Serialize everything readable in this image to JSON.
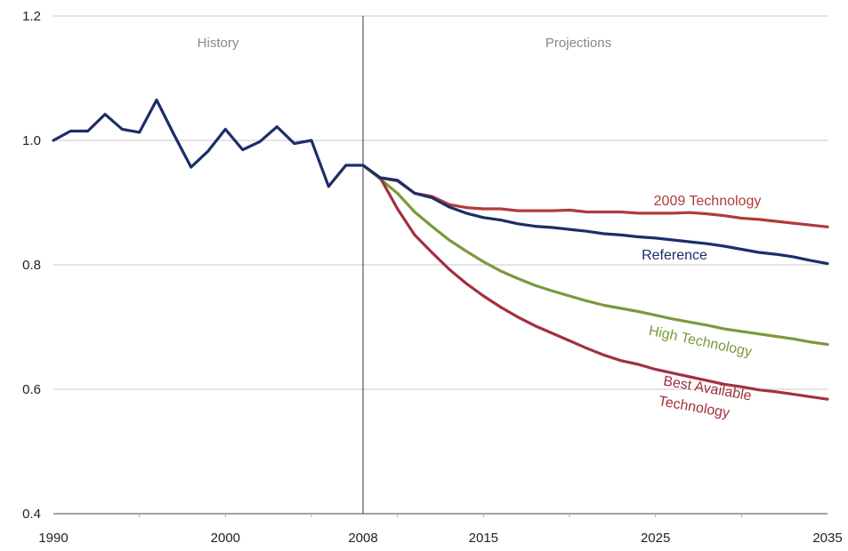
{
  "chart_data": {
    "type": "line",
    "title": "",
    "xlabel": "",
    "ylabel": "",
    "ylim": [
      0.4,
      1.2
    ],
    "yticks": [
      "0.4",
      "0.6",
      "0.8",
      "1.0",
      "1.2"
    ],
    "xticks": [
      "1990",
      "2000",
      "2008",
      "2015",
      "2025",
      "2035"
    ],
    "grid": "horizontal",
    "divider_year": 2008,
    "regions": {
      "history": "History",
      "projections": "Projections"
    },
    "colors": {
      "tech2009": "#b23a3a",
      "reference": "#1c2e6b",
      "high": "#7a9a3a",
      "best": "#a3303f",
      "grid": "#c8c8c8",
      "axis": "#444444"
    },
    "series": [
      {
        "key": "history",
        "color_key": "reference",
        "points": [
          [
            1990,
            1.0
          ],
          [
            1991,
            1.015
          ],
          [
            1992,
            1.015
          ],
          [
            1993,
            1.042
          ],
          [
            1994,
            1.018
          ],
          [
            1995,
            1.013
          ],
          [
            1996,
            1.065
          ],
          [
            1997,
            1.01
          ],
          [
            1998,
            0.957
          ],
          [
            1999,
            0.983
          ],
          [
            2000,
            1.018
          ],
          [
            2001,
            0.985
          ],
          [
            2002,
            0.998
          ],
          [
            2003,
            1.022
          ],
          [
            2004,
            0.995
          ],
          [
            2005,
            1.0
          ],
          [
            2006,
            0.926
          ],
          [
            2007,
            0.96
          ],
          [
            2008,
            0.96
          ]
        ]
      },
      {
        "key": "tech2009",
        "name": "2009 Technology",
        "color_key": "tech2009",
        "points": [
          [
            2008,
            0.96
          ],
          [
            2009,
            0.94
          ],
          [
            2010,
            0.935
          ],
          [
            2011,
            0.915
          ],
          [
            2012,
            0.91
          ],
          [
            2013,
            0.897
          ],
          [
            2014,
            0.892
          ],
          [
            2015,
            0.89
          ],
          [
            2016,
            0.89
          ],
          [
            2017,
            0.887
          ],
          [
            2018,
            0.887
          ],
          [
            2019,
            0.887
          ],
          [
            2020,
            0.888
          ],
          [
            2021,
            0.885
          ],
          [
            2022,
            0.885
          ],
          [
            2023,
            0.885
          ],
          [
            2024,
            0.883
          ],
          [
            2025,
            0.883
          ],
          [
            2026,
            0.883
          ],
          [
            2027,
            0.884
          ],
          [
            2028,
            0.882
          ],
          [
            2029,
            0.879
          ],
          [
            2030,
            0.875
          ],
          [
            2031,
            0.873
          ],
          [
            2032,
            0.87
          ],
          [
            2033,
            0.867
          ],
          [
            2034,
            0.864
          ],
          [
            2035,
            0.861
          ]
        ]
      },
      {
        "key": "reference",
        "name": "Reference",
        "color_key": "reference",
        "points": [
          [
            2008,
            0.96
          ],
          [
            2009,
            0.94
          ],
          [
            2010,
            0.936
          ],
          [
            2011,
            0.915
          ],
          [
            2012,
            0.908
          ],
          [
            2013,
            0.893
          ],
          [
            2014,
            0.883
          ],
          [
            2015,
            0.876
          ],
          [
            2016,
            0.872
          ],
          [
            2017,
            0.866
          ],
          [
            2018,
            0.862
          ],
          [
            2019,
            0.86
          ],
          [
            2020,
            0.857
          ],
          [
            2021,
            0.854
          ],
          [
            2022,
            0.85
          ],
          [
            2023,
            0.848
          ],
          [
            2024,
            0.845
          ],
          [
            2025,
            0.843
          ],
          [
            2026,
            0.84
          ],
          [
            2027,
            0.837
          ],
          [
            2028,
            0.834
          ],
          [
            2029,
            0.83
          ],
          [
            2030,
            0.825
          ],
          [
            2031,
            0.82
          ],
          [
            2032,
            0.817
          ],
          [
            2033,
            0.813
          ],
          [
            2034,
            0.807
          ],
          [
            2035,
            0.802
          ]
        ]
      },
      {
        "key": "high",
        "name": "High Technology",
        "color_key": "high",
        "points": [
          [
            2008,
            0.96
          ],
          [
            2009,
            0.938
          ],
          [
            2010,
            0.915
          ],
          [
            2011,
            0.885
          ],
          [
            2012,
            0.862
          ],
          [
            2013,
            0.84
          ],
          [
            2014,
            0.822
          ],
          [
            2015,
            0.805
          ],
          [
            2016,
            0.79
          ],
          [
            2017,
            0.778
          ],
          [
            2018,
            0.767
          ],
          [
            2019,
            0.758
          ],
          [
            2020,
            0.75
          ],
          [
            2021,
            0.742
          ],
          [
            2022,
            0.735
          ],
          [
            2023,
            0.73
          ],
          [
            2024,
            0.725
          ],
          [
            2025,
            0.719
          ],
          [
            2026,
            0.713
          ],
          [
            2027,
            0.708
          ],
          [
            2028,
            0.703
          ],
          [
            2029,
            0.697
          ],
          [
            2030,
            0.693
          ],
          [
            2031,
            0.689
          ],
          [
            2032,
            0.685
          ],
          [
            2033,
            0.681
          ],
          [
            2034,
            0.676
          ],
          [
            2035,
            0.672
          ]
        ]
      },
      {
        "key": "best",
        "name": "Best Available Technology",
        "label_lines": [
          "Best Available",
          "Technology"
        ],
        "color_key": "best",
        "points": [
          [
            2008,
            0.96
          ],
          [
            2009,
            0.94
          ],
          [
            2010,
            0.89
          ],
          [
            2011,
            0.848
          ],
          [
            2012,
            0.82
          ],
          [
            2013,
            0.793
          ],
          [
            2014,
            0.77
          ],
          [
            2015,
            0.75
          ],
          [
            2016,
            0.732
          ],
          [
            2017,
            0.716
          ],
          [
            2018,
            0.702
          ],
          [
            2019,
            0.69
          ],
          [
            2020,
            0.678
          ],
          [
            2021,
            0.666
          ],
          [
            2022,
            0.655
          ],
          [
            2023,
            0.646
          ],
          [
            2024,
            0.64
          ],
          [
            2025,
            0.632
          ],
          [
            2026,
            0.626
          ],
          [
            2027,
            0.62
          ],
          [
            2028,
            0.614
          ],
          [
            2029,
            0.608
          ],
          [
            2030,
            0.604
          ],
          [
            2031,
            0.599
          ],
          [
            2032,
            0.596
          ],
          [
            2033,
            0.592
          ],
          [
            2034,
            0.588
          ],
          [
            2035,
            0.584
          ]
        ]
      }
    ]
  }
}
